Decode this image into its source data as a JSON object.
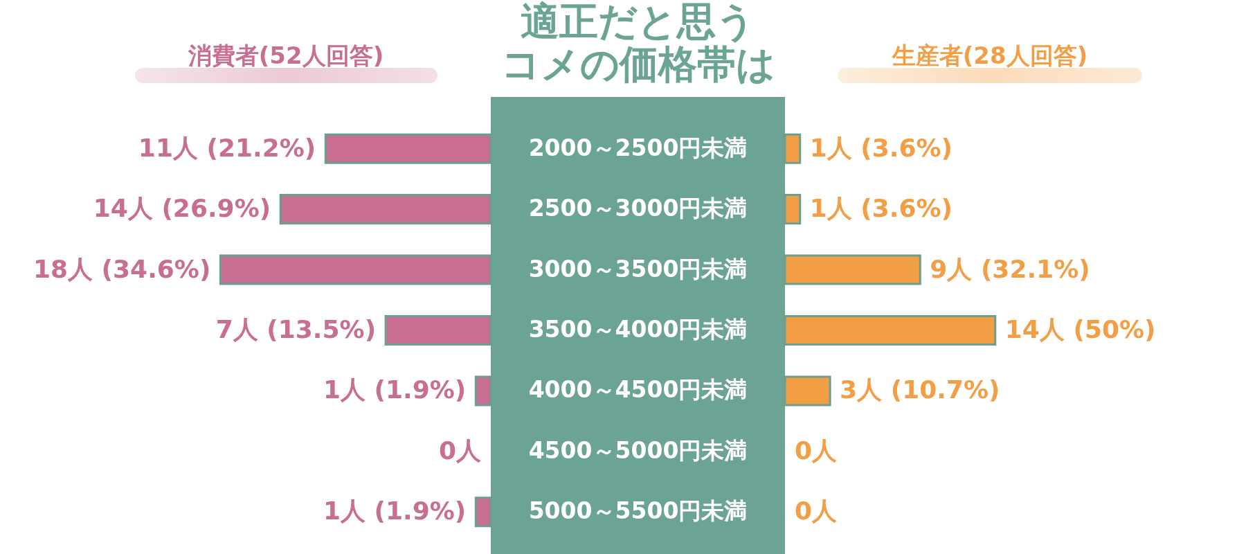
{
  "chart_data": [
    {
      "type": "bar",
      "orientation": "horizontal",
      "title": "適正だと思う",
      "subtitle": "コメの価格帯は",
      "categories": [
        "2000～2500円未満",
        "2500～3000円未満",
        "3000～3500円未満",
        "3500～4000円未満",
        "4000～4500円未満",
        "4500～5000円未満",
        "5000～5500円未満"
      ],
      "tick_labels": "y",
      "series": [
        {
          "name": "消費者(52人回答)",
          "color": "#c76e92",
          "values": [
            11,
            14,
            18,
            7,
            1,
            0,
            1
          ],
          "value_labels": [
            "11人 (21.2%)",
            "14人 (26.9%)",
            "18人 (34.6%)",
            "7人 (13.5%)",
            "1人 (1.9%)",
            "0人",
            "1人 (1.9%)"
          ]
        }
      ]
    },
    {
      "type": "bar",
      "orientation": "horizontal",
      "tick_labels": false,
      "series": [
        {
          "name": "生産者(28人回答)",
          "color": "#f29e45",
          "values": [
            1,
            1,
            9,
            14,
            3,
            0,
            0
          ],
          "value_labels": [
            "1人 (3.6%)",
            "1人 (3.6%)",
            "9人 (32.1%)",
            "14人 (50%)",
            "3人 (10.7%)",
            "0人",
            "0人"
          ]
        }
      ]
    }
  ]
}
